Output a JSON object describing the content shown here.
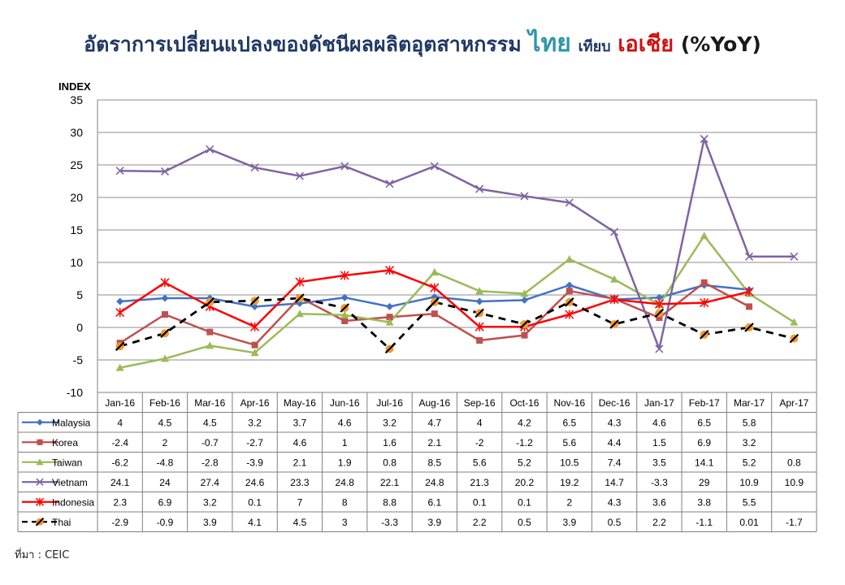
{
  "title": {
    "part1": "อัตราการเปลี่ยนแปลงของดัชนีผลผลิตอุตสาหกรรม",
    "part2": "ไทย",
    "part3": "เทียบ",
    "part4": "เอเชีย",
    "part5": "(%YoY)"
  },
  "source": "ที่มา : CEIC",
  "chart_data": {
    "type": "line",
    "ylabel": "INDEX",
    "ylim": [
      -10,
      35
    ],
    "yticks": [
      -10,
      -5,
      0,
      5,
      10,
      15,
      20,
      25,
      30,
      35
    ],
    "grid": true,
    "legend": "data-table-below",
    "categories": [
      "Jan-16",
      "Feb-16",
      "Mar-16",
      "Apr-16",
      "May-16",
      "Jun-16",
      "Jul-16",
      "Aug-16",
      "Sep-16",
      "Oct-16",
      "Nov-16",
      "Dec-16",
      "Jan-17",
      "Feb-17",
      "Mar-17",
      "Apr-17"
    ],
    "series": [
      {
        "name": "Malaysia",
        "color": "#4472C4",
        "marker": "diamond",
        "values": [
          4,
          4.5,
          4.5,
          3.2,
          3.7,
          4.6,
          3.2,
          4.7,
          4,
          4.2,
          6.5,
          4.3,
          4.6,
          6.5,
          5.8,
          null
        ],
        "labels": [
          "4",
          "4.5",
          "4.5",
          "3.2",
          "3.7",
          "4.6",
          "3.2",
          "4.7",
          "4",
          "4.2",
          "6.5",
          "4.3",
          "4.6",
          "6.5",
          "5.8",
          ""
        ]
      },
      {
        "name": "Korea",
        "color": "#C0504D",
        "marker": "square",
        "values": [
          -2.4,
          2,
          -0.7,
          -2.7,
          4.6,
          1,
          1.6,
          2.1,
          -2,
          -1.2,
          5.6,
          4.4,
          1.5,
          6.9,
          3.2,
          null
        ],
        "labels": [
          "-2.4",
          "2",
          "-0.7",
          "-2.7",
          "4.6",
          "1",
          "1.6",
          "2.1",
          "-2",
          "-1.2",
          "5.6",
          "4.4",
          "1.5",
          "6.9",
          "3.2",
          ""
        ]
      },
      {
        "name": "Taiwan",
        "color": "#9BBB59",
        "marker": "triangle",
        "values": [
          -6.2,
          -4.8,
          -2.8,
          -3.9,
          2.1,
          1.9,
          0.8,
          8.5,
          5.6,
          5.2,
          10.5,
          7.4,
          3.5,
          14.1,
          5.2,
          0.8
        ],
        "labels": [
          "-6.2",
          "-4.8",
          "-2.8",
          "-3.9",
          "2.1",
          "1.9",
          "0.8",
          "8.5",
          "5.6",
          "5.2",
          "10.5",
          "7.4",
          "3.5",
          "14.1",
          "5.2",
          "0.8"
        ]
      },
      {
        "name": "Vietnam",
        "color": "#8064A2",
        "marker": "x",
        "values": [
          24.1,
          24,
          27.4,
          24.6,
          23.3,
          24.8,
          22.1,
          24.8,
          21.3,
          20.2,
          19.2,
          14.7,
          -3.3,
          29,
          10.9,
          10.9
        ],
        "labels": [
          "24.1",
          "24",
          "27.4",
          "24.6",
          "23.3",
          "24.8",
          "22.1",
          "24.8",
          "21.3",
          "20.2",
          "19.2",
          "14.7",
          "-3.3",
          "29",
          "10.9",
          "10.9"
        ]
      },
      {
        "name": "Indonesia",
        "color": "#FF0000",
        "marker": "star",
        "values": [
          2.3,
          6.9,
          3.2,
          0.1,
          7,
          8,
          8.8,
          6.1,
          0.1,
          0.1,
          2,
          4.3,
          3.6,
          3.8,
          5.5,
          null
        ],
        "labels": [
          "2.3",
          "6.9",
          "3.2",
          "0.1",
          "7",
          "8",
          "8.8",
          "6.1",
          "0.1",
          "0.1",
          "2",
          "4.3",
          "3.6",
          "3.8",
          "5.5",
          ""
        ]
      },
      {
        "name": "Thai",
        "color": "#000000",
        "marker": "circle",
        "markerColor": "#F29B2A",
        "dashed": true,
        "values": [
          -2.9,
          -0.9,
          3.9,
          4.1,
          4.5,
          3,
          -3.3,
          3.9,
          2.2,
          0.5,
          3.9,
          0.5,
          2.2,
          -1.1,
          0.01,
          -1.7
        ],
        "labels": [
          "-2.9",
          "-0.9",
          "3.9",
          "4.1",
          "4.5",
          "3",
          "-3.3",
          "3.9",
          "2.2",
          "0.5",
          "3.9",
          "0.5",
          "2.2",
          "-1.1",
          "0.01",
          "-1.7"
        ]
      }
    ]
  }
}
